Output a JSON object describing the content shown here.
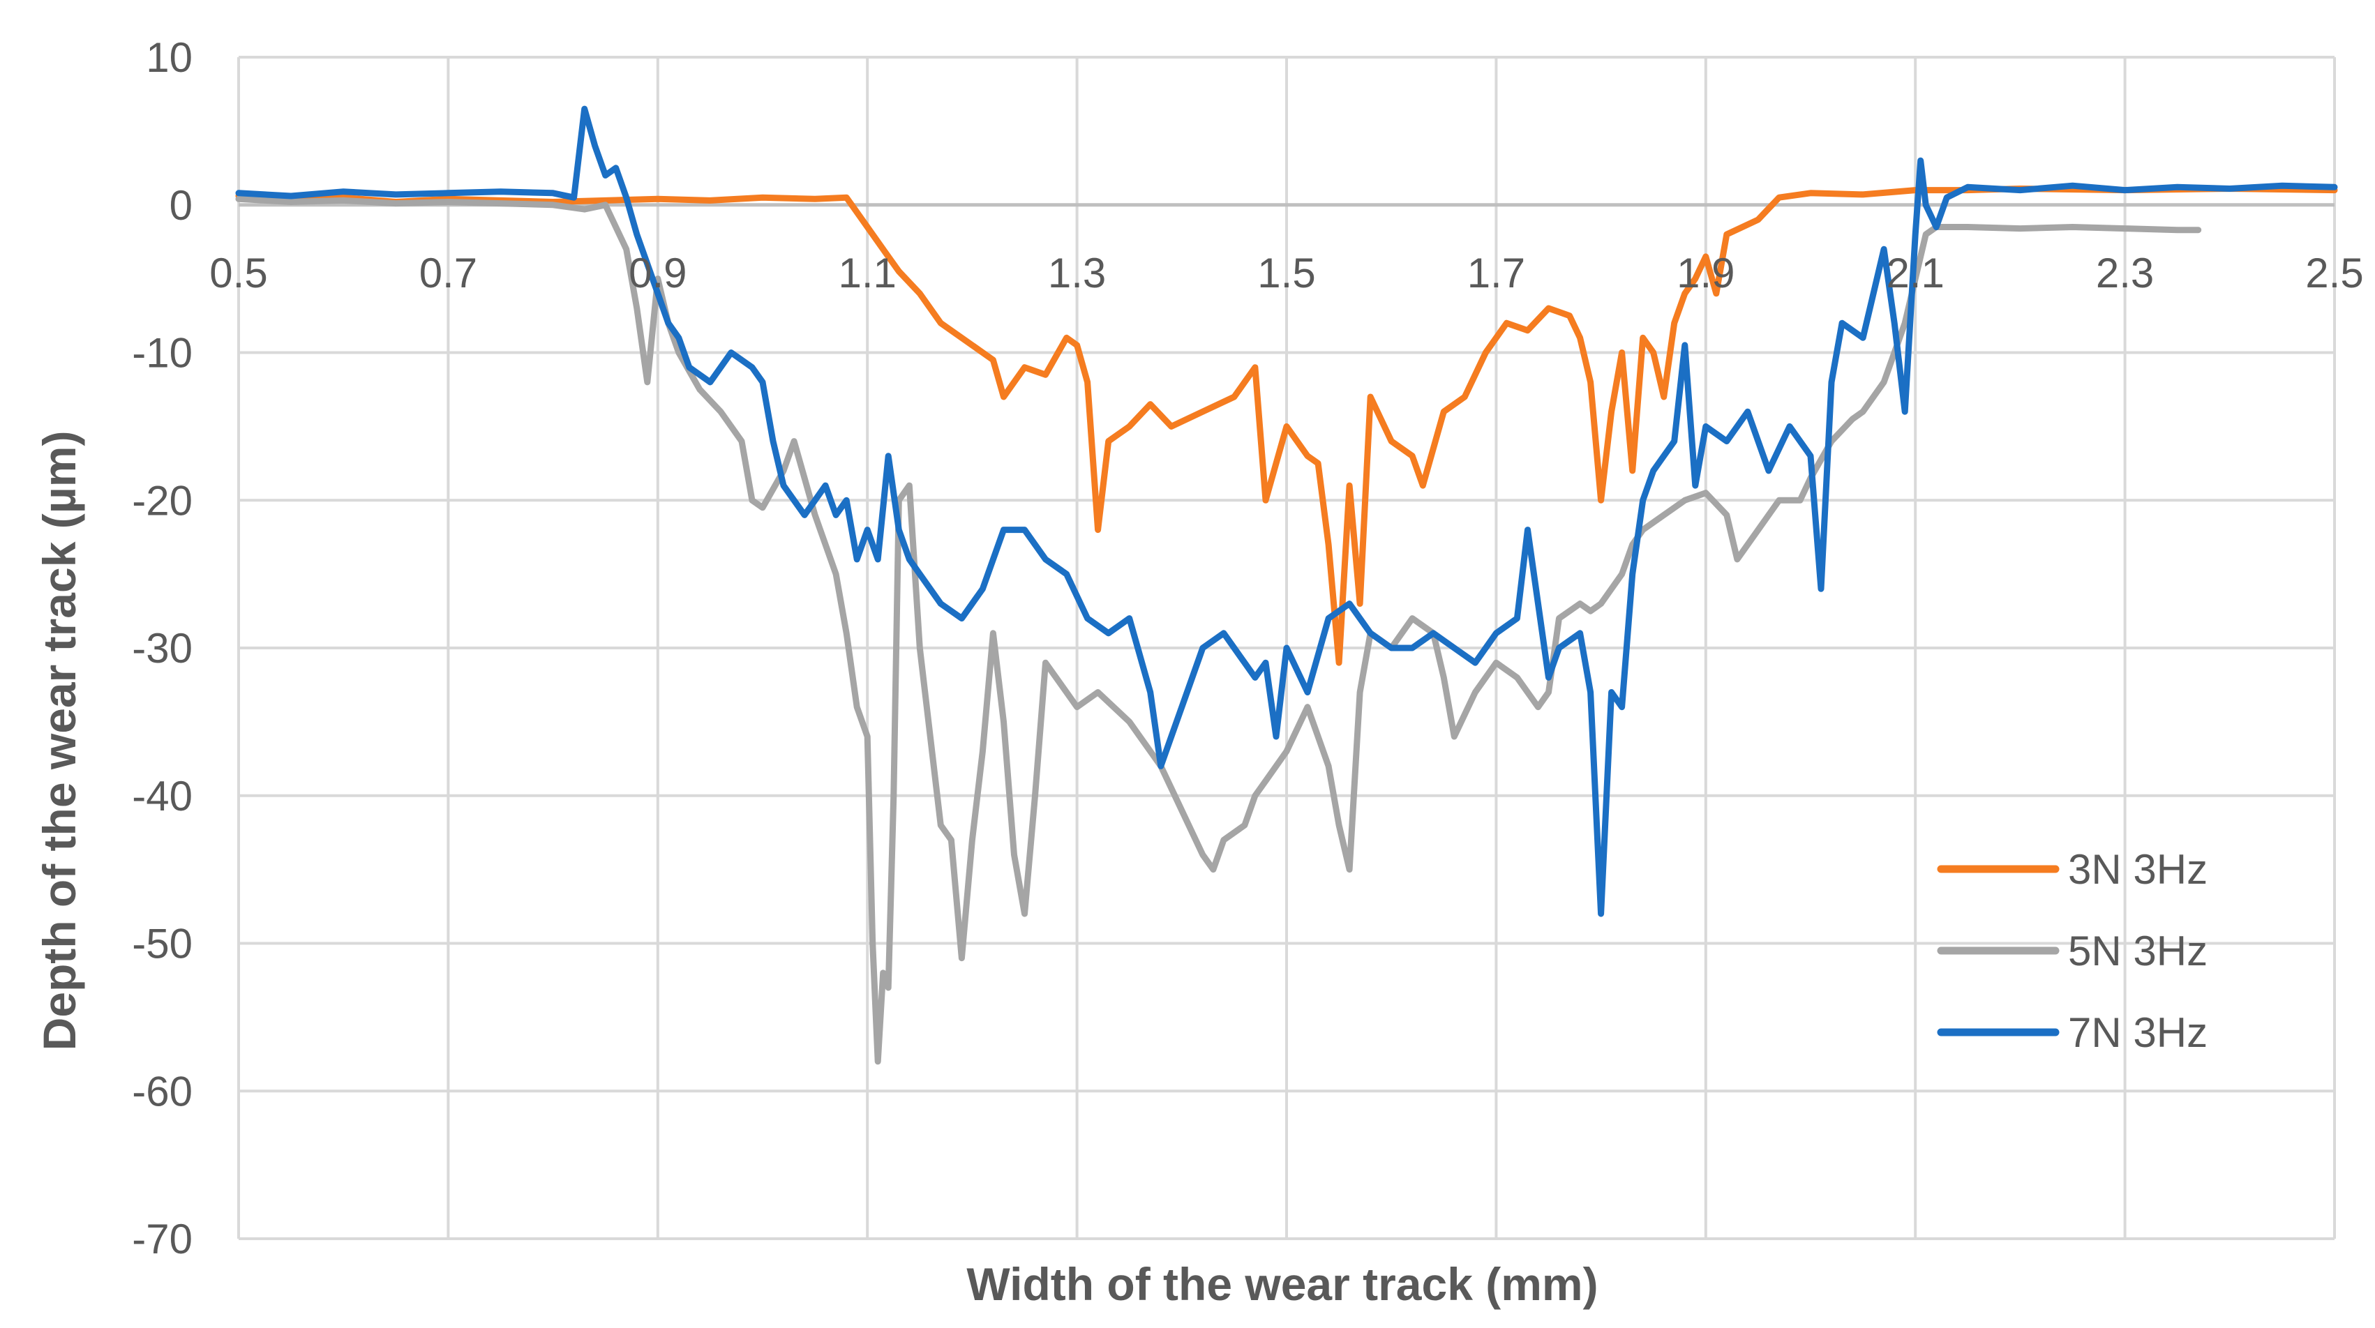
{
  "chart_data": {
    "type": "line",
    "xlabel": "Width of the wear track (mm)",
    "ylabel": "Depth of the wear track (µm)",
    "xlim": [
      0.5,
      2.5
    ],
    "ylim": [
      -70,
      10
    ],
    "xticks": [
      "0.5",
      "0.7",
      "0.9",
      "1.1",
      "1.3",
      "1.5",
      "1.7",
      "1.9",
      "2.1",
      "2.3",
      "2.5"
    ],
    "yticks": [
      "10",
      "0",
      "-10",
      "-20",
      "-30",
      "-40",
      "-50",
      "-60",
      "-70"
    ],
    "grid": true,
    "legend_position": "right",
    "series": [
      {
        "name": "3N 3Hz",
        "color": "#F57C20",
        "points": [
          [
            0.5,
            0.6
          ],
          [
            0.55,
            0.3
          ],
          [
            0.6,
            0.5
          ],
          [
            0.65,
            0.2
          ],
          [
            0.7,
            0.4
          ],
          [
            0.75,
            0.3
          ],
          [
            0.8,
            0.2
          ],
          [
            0.85,
            0.3
          ],
          [
            0.9,
            0.4
          ],
          [
            0.95,
            0.3
          ],
          [
            1.0,
            0.5
          ],
          [
            1.05,
            0.4
          ],
          [
            1.08,
            0.5
          ],
          [
            1.1,
            -1.5
          ],
          [
            1.12,
            -3.5
          ],
          [
            1.13,
            -4.5
          ],
          [
            1.15,
            -6
          ],
          [
            1.17,
            -8
          ],
          [
            1.2,
            -9.5
          ],
          [
            1.22,
            -10.5
          ],
          [
            1.23,
            -13
          ],
          [
            1.25,
            -11
          ],
          [
            1.27,
            -11.5
          ],
          [
            1.29,
            -9
          ],
          [
            1.3,
            -9.5
          ],
          [
            1.31,
            -12
          ],
          [
            1.32,
            -22
          ],
          [
            1.33,
            -16
          ],
          [
            1.35,
            -15
          ],
          [
            1.37,
            -13.5
          ],
          [
            1.39,
            -15
          ],
          [
            1.42,
            -14
          ],
          [
            1.45,
            -13
          ],
          [
            1.47,
            -11
          ],
          [
            1.48,
            -20
          ],
          [
            1.5,
            -15
          ],
          [
            1.52,
            -17
          ],
          [
            1.53,
            -17.5
          ],
          [
            1.54,
            -23
          ],
          [
            1.55,
            -31
          ],
          [
            1.56,
            -19
          ],
          [
            1.57,
            -27
          ],
          [
            1.58,
            -13
          ],
          [
            1.6,
            -16
          ],
          [
            1.62,
            -17
          ],
          [
            1.63,
            -19
          ],
          [
            1.65,
            -14
          ],
          [
            1.67,
            -13
          ],
          [
            1.69,
            -10
          ],
          [
            1.71,
            -8
          ],
          [
            1.73,
            -8.5
          ],
          [
            1.75,
            -7
          ],
          [
            1.77,
            -7.5
          ],
          [
            1.78,
            -9
          ],
          [
            1.79,
            -12
          ],
          [
            1.8,
            -20
          ],
          [
            1.81,
            -14
          ],
          [
            1.82,
            -10
          ],
          [
            1.83,
            -18
          ],
          [
            1.84,
            -9
          ],
          [
            1.85,
            -10
          ],
          [
            1.86,
            -13
          ],
          [
            1.87,
            -8
          ],
          [
            1.88,
            -6
          ],
          [
            1.89,
            -5
          ],
          [
            1.9,
            -3.5
          ],
          [
            1.91,
            -6
          ],
          [
            1.92,
            -2
          ],
          [
            1.95,
            -1
          ],
          [
            1.97,
            0.5
          ],
          [
            2.0,
            0.8
          ],
          [
            2.05,
            0.7
          ],
          [
            2.1,
            1.0
          ],
          [
            2.15,
            1.0
          ],
          [
            2.2,
            1.1
          ],
          [
            2.3,
            1.0
          ],
          [
            2.4,
            1.1
          ],
          [
            2.5,
            1.0
          ]
        ]
      },
      {
        "name": "5N 3Hz",
        "color": "#A5A5A5",
        "points": [
          [
            0.5,
            0.4
          ],
          [
            0.55,
            0.2
          ],
          [
            0.6,
            0.3
          ],
          [
            0.65,
            0.1
          ],
          [
            0.7,
            0.2
          ],
          [
            0.75,
            0.1
          ],
          [
            0.8,
            0.0
          ],
          [
            0.83,
            -0.3
          ],
          [
            0.85,
            0.0
          ],
          [
            0.87,
            -3
          ],
          [
            0.88,
            -7
          ],
          [
            0.89,
            -12
          ],
          [
            0.9,
            -5
          ],
          [
            0.91,
            -8
          ],
          [
            0.92,
            -10
          ],
          [
            0.94,
            -12.5
          ],
          [
            0.96,
            -14
          ],
          [
            0.98,
            -16
          ],
          [
            0.99,
            -20
          ],
          [
            1.0,
            -20.5
          ],
          [
            1.02,
            -18
          ],
          [
            1.03,
            -16
          ],
          [
            1.05,
            -21
          ],
          [
            1.06,
            -23
          ],
          [
            1.07,
            -25
          ],
          [
            1.08,
            -29
          ],
          [
            1.09,
            -34
          ],
          [
            1.1,
            -36
          ],
          [
            1.105,
            -50
          ],
          [
            1.11,
            -58
          ],
          [
            1.115,
            -52
          ],
          [
            1.12,
            -53
          ],
          [
            1.125,
            -40
          ],
          [
            1.13,
            -20
          ],
          [
            1.14,
            -19
          ],
          [
            1.15,
            -30
          ],
          [
            1.16,
            -36
          ],
          [
            1.17,
            -42
          ],
          [
            1.18,
            -43
          ],
          [
            1.19,
            -51
          ],
          [
            1.2,
            -43
          ],
          [
            1.21,
            -37
          ],
          [
            1.22,
            -29
          ],
          [
            1.23,
            -35
          ],
          [
            1.24,
            -44
          ],
          [
            1.25,
            -48
          ],
          [
            1.26,
            -40
          ],
          [
            1.27,
            -31
          ],
          [
            1.28,
            -32
          ],
          [
            1.29,
            -33
          ],
          [
            1.3,
            -34
          ],
          [
            1.32,
            -33
          ],
          [
            1.35,
            -35
          ],
          [
            1.38,
            -38
          ],
          [
            1.4,
            -41
          ],
          [
            1.42,
            -44
          ],
          [
            1.43,
            -45
          ],
          [
            1.44,
            -43
          ],
          [
            1.46,
            -42
          ],
          [
            1.47,
            -40
          ],
          [
            1.48,
            -39
          ],
          [
            1.5,
            -37
          ],
          [
            1.52,
            -34
          ],
          [
            1.53,
            -36
          ],
          [
            1.54,
            -38
          ],
          [
            1.55,
            -42
          ],
          [
            1.56,
            -45
          ],
          [
            1.57,
            -33
          ],
          [
            1.58,
            -29
          ],
          [
            1.6,
            -30
          ],
          [
            1.62,
            -28
          ],
          [
            1.64,
            -29
          ],
          [
            1.65,
            -32
          ],
          [
            1.66,
            -36
          ],
          [
            1.68,
            -33
          ],
          [
            1.7,
            -31
          ],
          [
            1.72,
            -32
          ],
          [
            1.74,
            -34
          ],
          [
            1.75,
            -33
          ],
          [
            1.76,
            -28
          ],
          [
            1.78,
            -27
          ],
          [
            1.79,
            -27.5
          ],
          [
            1.8,
            -27
          ],
          [
            1.81,
            -26
          ],
          [
            1.82,
            -25
          ],
          [
            1.83,
            -23
          ],
          [
            1.84,
            -22
          ],
          [
            1.86,
            -21
          ],
          [
            1.88,
            -20
          ],
          [
            1.9,
            -19.5
          ],
          [
            1.92,
            -21
          ],
          [
            1.93,
            -24
          ],
          [
            1.95,
            -22
          ],
          [
            1.97,
            -20
          ],
          [
            1.99,
            -20
          ],
          [
            2.0,
            -18.5
          ],
          [
            2.02,
            -16
          ],
          [
            2.04,
            -14.5
          ],
          [
            2.05,
            -14
          ],
          [
            2.06,
            -13
          ],
          [
            2.07,
            -12
          ],
          [
            2.08,
            -10
          ],
          [
            2.09,
            -8
          ],
          [
            2.1,
            -5
          ],
          [
            2.11,
            -2
          ],
          [
            2.12,
            -1.5
          ],
          [
            2.15,
            -1.5
          ],
          [
            2.2,
            -1.6
          ],
          [
            2.25,
            -1.5
          ],
          [
            2.3,
            -1.6
          ],
          [
            2.35,
            -1.7
          ],
          [
            2.37,
            -1.7
          ]
        ]
      },
      {
        "name": "7N 3Hz",
        "color": "#1B6FC4",
        "points": [
          [
            0.5,
            0.8
          ],
          [
            0.55,
            0.6
          ],
          [
            0.6,
            0.9
          ],
          [
            0.65,
            0.7
          ],
          [
            0.7,
            0.8
          ],
          [
            0.75,
            0.9
          ],
          [
            0.8,
            0.8
          ],
          [
            0.82,
            0.5
          ],
          [
            0.83,
            6.5
          ],
          [
            0.84,
            4
          ],
          [
            0.85,
            2
          ],
          [
            0.86,
            2.5
          ],
          [
            0.87,
            0.5
          ],
          [
            0.88,
            -2
          ],
          [
            0.89,
            -4
          ],
          [
            0.9,
            -6
          ],
          [
            0.91,
            -8
          ],
          [
            0.92,
            -9
          ],
          [
            0.93,
            -11
          ],
          [
            0.95,
            -12
          ],
          [
            0.97,
            -10
          ],
          [
            0.99,
            -11
          ],
          [
            1.0,
            -12
          ],
          [
            1.01,
            -16
          ],
          [
            1.02,
            -19
          ],
          [
            1.04,
            -21
          ],
          [
            1.05,
            -20
          ],
          [
            1.06,
            -19
          ],
          [
            1.07,
            -21
          ],
          [
            1.08,
            -20
          ],
          [
            1.09,
            -24
          ],
          [
            1.1,
            -22
          ],
          [
            1.11,
            -24
          ],
          [
            1.12,
            -17
          ],
          [
            1.13,
            -22
          ],
          [
            1.14,
            -24
          ],
          [
            1.15,
            -25
          ],
          [
            1.17,
            -27
          ],
          [
            1.19,
            -28
          ],
          [
            1.21,
            -26
          ],
          [
            1.23,
            -22
          ],
          [
            1.25,
            -22
          ],
          [
            1.27,
            -24
          ],
          [
            1.29,
            -25
          ],
          [
            1.31,
            -28
          ],
          [
            1.33,
            -29
          ],
          [
            1.35,
            -28
          ],
          [
            1.37,
            -33
          ],
          [
            1.38,
            -38
          ],
          [
            1.39,
            -36
          ],
          [
            1.4,
            -34
          ],
          [
            1.42,
            -30
          ],
          [
            1.44,
            -29
          ],
          [
            1.46,
            -31
          ],
          [
            1.47,
            -32
          ],
          [
            1.48,
            -31
          ],
          [
            1.49,
            -36
          ],
          [
            1.5,
            -30
          ],
          [
            1.52,
            -33
          ],
          [
            1.54,
            -28
          ],
          [
            1.56,
            -27
          ],
          [
            1.58,
            -29
          ],
          [
            1.6,
            -30
          ],
          [
            1.62,
            -30
          ],
          [
            1.64,
            -29
          ],
          [
            1.66,
            -30
          ],
          [
            1.68,
            -31
          ],
          [
            1.7,
            -29
          ],
          [
            1.72,
            -28
          ],
          [
            1.73,
            -22
          ],
          [
            1.74,
            -27
          ],
          [
            1.75,
            -32
          ],
          [
            1.76,
            -30
          ],
          [
            1.78,
            -29
          ],
          [
            1.79,
            -33
          ],
          [
            1.8,
            -48
          ],
          [
            1.81,
            -33
          ],
          [
            1.82,
            -34
          ],
          [
            1.83,
            -25
          ],
          [
            1.84,
            -20
          ],
          [
            1.85,
            -18
          ],
          [
            1.86,
            -17
          ],
          [
            1.87,
            -16
          ],
          [
            1.88,
            -9.5
          ],
          [
            1.89,
            -19
          ],
          [
            1.9,
            -15
          ],
          [
            1.92,
            -16
          ],
          [
            1.94,
            -14
          ],
          [
            1.96,
            -18
          ],
          [
            1.98,
            -15
          ],
          [
            2.0,
            -17
          ],
          [
            2.01,
            -26
          ],
          [
            2.02,
            -12
          ],
          [
            2.03,
            -8
          ],
          [
            2.05,
            -9
          ],
          [
            2.07,
            -3
          ],
          [
            2.08,
            -8
          ],
          [
            2.09,
            -14
          ],
          [
            2.1,
            -2
          ],
          [
            2.105,
            3
          ],
          [
            2.11,
            0
          ],
          [
            2.12,
            -1.5
          ],
          [
            2.13,
            0.5
          ],
          [
            2.15,
            1.2
          ],
          [
            2.2,
            1.0
          ],
          [
            2.25,
            1.3
          ],
          [
            2.3,
            1.0
          ],
          [
            2.35,
            1.2
          ],
          [
            2.4,
            1.1
          ],
          [
            2.45,
            1.3
          ],
          [
            2.5,
            1.2
          ]
        ]
      }
    ]
  }
}
